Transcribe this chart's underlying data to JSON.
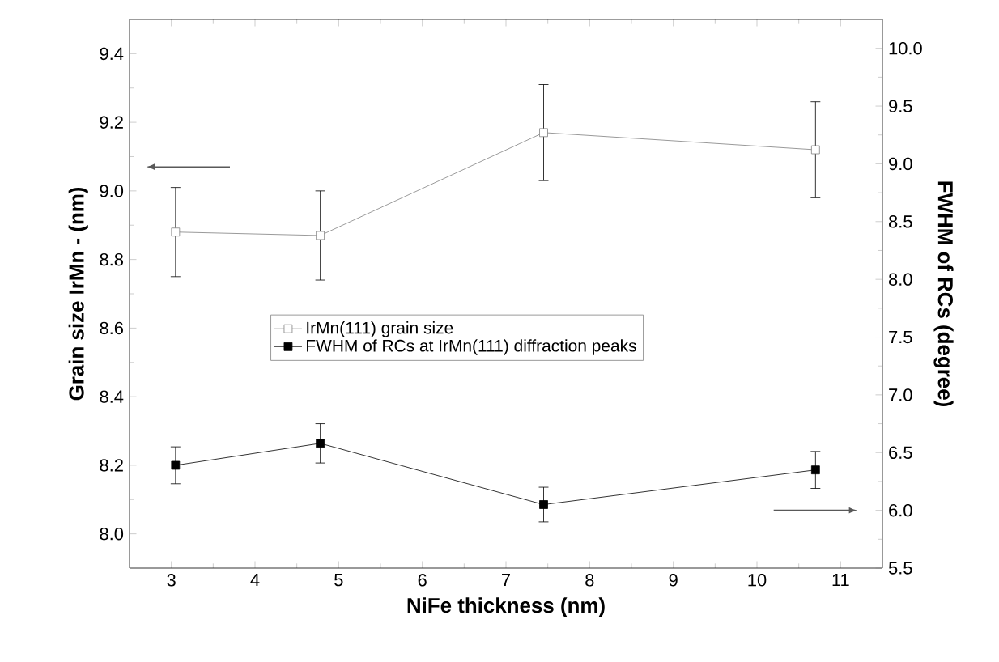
{
  "chart_data": {
    "type": "line",
    "xlabel": "NiFe thickness (nm)",
    "ylabel": "Grain size IrMn - (nm)",
    "y2label": "FWHM of RCs (degree)",
    "x": [
      3.05,
      4.78,
      7.45,
      10.7
    ],
    "series": [
      {
        "name": "IrMn(111) grain size",
        "color": "#808080",
        "values": [
          8.88,
          8.87,
          9.17,
          9.12
        ],
        "errors": [
          0.13,
          0.13,
          0.14,
          0.14
        ],
        "axis": "y"
      },
      {
        "name": "FWHM of RCs at IrMn(111) diffraction peaks",
        "color": "#000000",
        "values": [
          6.39,
          6.58,
          6.05,
          6.35
        ],
        "errors": [
          0.16,
          0.17,
          0.15,
          0.16
        ],
        "axis": "y2"
      }
    ],
    "xlim": [
      2.5,
      11.5
    ],
    "xticks": [
      3,
      4,
      5,
      6,
      7,
      8,
      9,
      10,
      11
    ],
    "ylim": [
      7.9,
      9.5
    ],
    "yticks": [
      {
        "value": 8.0,
        "label": "8.0"
      },
      8.2,
      8.4,
      8.6,
      8.8,
      {
        "value": 9.0,
        "label": "9.0"
      },
      9.2,
      9.4
    ],
    "y2lim": [
      5.5,
      10.25
    ],
    "y2ticks": [
      5.5,
      {
        "value": 6.0,
        "label": "6.0"
      },
      6.5,
      {
        "value": 7.0,
        "label": "7.0"
      },
      7.5,
      {
        "value": 8.0,
        "label": "8.0"
      },
      8.5,
      {
        "value": 9.0,
        "label": "9.0"
      },
      9.5,
      {
        "value": 10.0,
        "label": "10.0"
      }
    ],
    "marker": "square",
    "line_style": "solid",
    "legend": "center",
    "grid": false
  }
}
